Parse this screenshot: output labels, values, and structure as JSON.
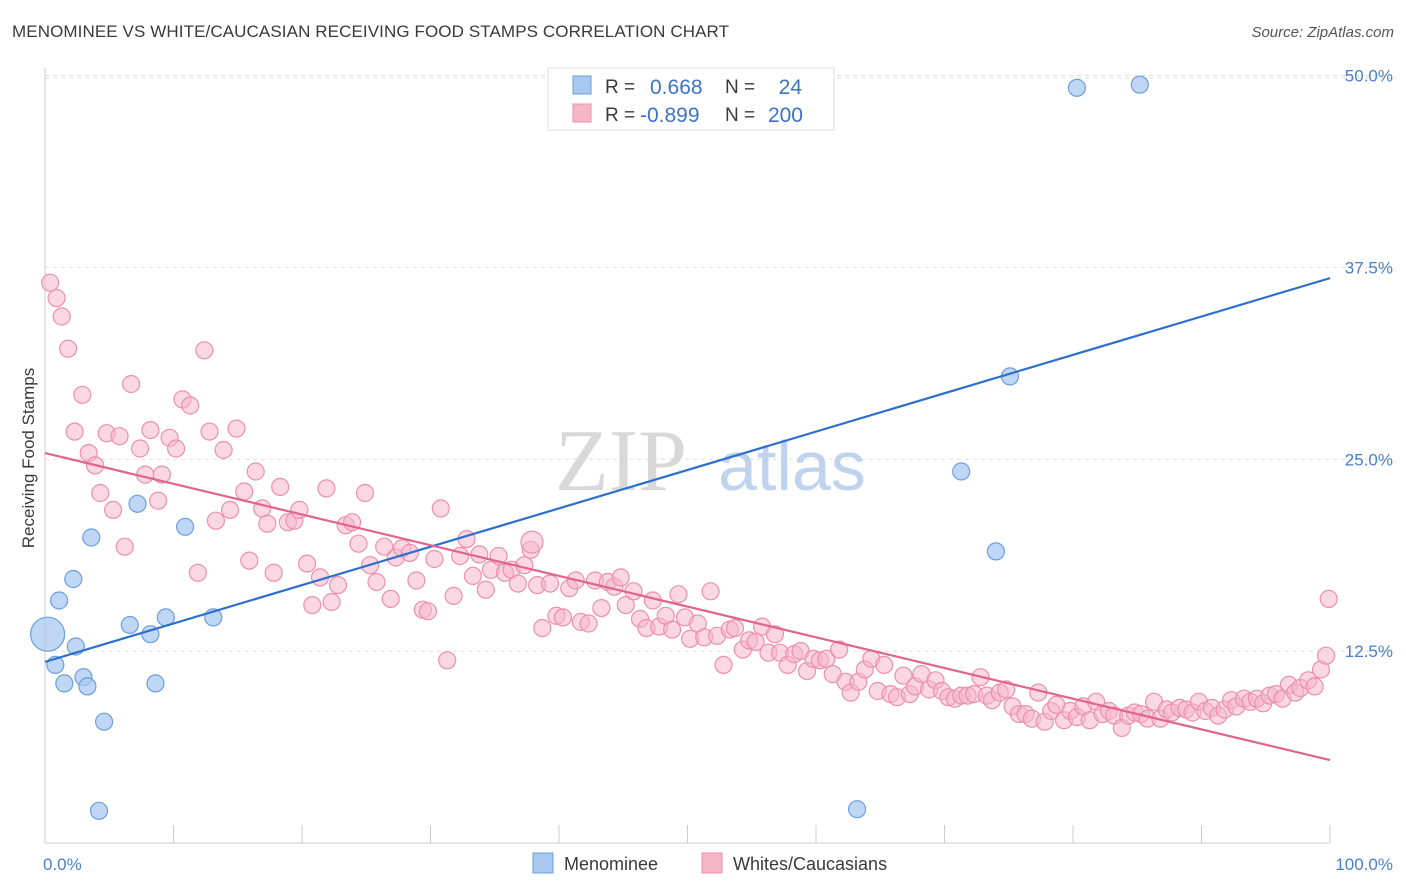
{
  "title": "MENOMINEE VS WHITE/CAUCASIAN RECEIVING FOOD STAMPS CORRELATION CHART",
  "source": "Source: ZipAtlas.com",
  "watermark": {
    "zip": "ZIP",
    "atlas": "atlas"
  },
  "legend": {
    "rows": [
      {
        "r_label": "R =",
        "r_value": "0.668",
        "n_label": "N =",
        "n_value": "24"
      },
      {
        "r_label": "R =",
        "r_value": "-0.899",
        "n_label": "N =",
        "n_value": "200"
      }
    ]
  },
  "bottom_legend": [
    "Menominee",
    "Whites/Caucasians"
  ],
  "colors": {
    "blue_fill": "#a9c8f0",
    "blue_stroke": "#6a9fde",
    "blue_line": "#2d6fce",
    "pink_fill": "#f6b6ca",
    "pink_stroke": "#ec8fb0",
    "pink_line": "#e0648f",
    "tick_text": "#4a7ec9",
    "grid": "#dddddd"
  },
  "chart_data": {
    "type": "scatter",
    "title": "MENOMINEE VS WHITE/CAUCASIAN RECEIVING FOOD STAMPS CORRELATION CHART",
    "xlabel": "",
    "ylabel": "Receiving Food Stamps",
    "xlim": [
      0,
      100
    ],
    "ylim": [
      0,
      52
    ],
    "x_ticks": [
      "0.0%",
      "100.0%"
    ],
    "y_ticks": [
      {
        "value": 12.5,
        "label": "12.5%"
      },
      {
        "value": 25.0,
        "label": "25.0%"
      },
      {
        "value": 37.5,
        "label": "37.5%"
      },
      {
        "value": 50.0,
        "label": "50.0%"
      }
    ],
    "grid": "horizontal dashed",
    "series": [
      {
        "name": "Menominee",
        "r": 0.668,
        "n": 24,
        "trend": {
          "x": [
            0,
            100
          ],
          "y": [
            11.8,
            36.8
          ]
        },
        "points": [
          {
            "x": 0.2,
            "y": 13.6,
            "big": true
          },
          {
            "x": 0.8,
            "y": 11.6
          },
          {
            "x": 1.1,
            "y": 15.8
          },
          {
            "x": 1.5,
            "y": 10.4
          },
          {
            "x": 2.2,
            "y": 17.2
          },
          {
            "x": 2.4,
            "y": 12.8
          },
          {
            "x": 3.0,
            "y": 10.8
          },
          {
            "x": 3.3,
            "y": 10.2
          },
          {
            "x": 3.6,
            "y": 19.9
          },
          {
            "x": 4.2,
            "y": 2.1
          },
          {
            "x": 4.6,
            "y": 7.9
          },
          {
            "x": 6.6,
            "y": 14.2
          },
          {
            "x": 7.2,
            "y": 22.1
          },
          {
            "x": 8.2,
            "y": 13.6
          },
          {
            "x": 8.6,
            "y": 10.4
          },
          {
            "x": 9.4,
            "y": 14.7
          },
          {
            "x": 10.9,
            "y": 20.6
          },
          {
            "x": 13.1,
            "y": 14.7
          },
          {
            "x": 63.2,
            "y": 2.2
          },
          {
            "x": 71.3,
            "y": 24.2
          },
          {
            "x": 74.0,
            "y": 19.0
          },
          {
            "x": 75.1,
            "y": 30.4
          },
          {
            "x": 80.3,
            "y": 49.2
          },
          {
            "x": 85.2,
            "y": 49.4
          }
        ]
      },
      {
        "name": "Whites/Caucasians",
        "r": -0.899,
        "n": 200,
        "trend": {
          "x": [
            0,
            100
          ],
          "y": [
            25.4,
            5.4
          ]
        },
        "points": [
          {
            "x": 0.4,
            "y": 36.5
          },
          {
            "x": 0.9,
            "y": 35.5
          },
          {
            "x": 1.3,
            "y": 34.3
          },
          {
            "x": 1.8,
            "y": 32.2
          },
          {
            "x": 2.3,
            "y": 26.8
          },
          {
            "x": 2.9,
            "y": 29.2
          },
          {
            "x": 3.4,
            "y": 25.4
          },
          {
            "x": 3.9,
            "y": 24.6
          },
          {
            "x": 4.3,
            "y": 22.8
          },
          {
            "x": 4.8,
            "y": 26.7
          },
          {
            "x": 5.3,
            "y": 21.7
          },
          {
            "x": 5.8,
            "y": 26.5
          },
          {
            "x": 6.2,
            "y": 19.3
          },
          {
            "x": 6.7,
            "y": 29.9
          },
          {
            "x": 7.4,
            "y": 25.7
          },
          {
            "x": 7.8,
            "y": 24.0
          },
          {
            "x": 8.2,
            "y": 26.9
          },
          {
            "x": 8.8,
            "y": 22.3
          },
          {
            "x": 9.1,
            "y": 24.0
          },
          {
            "x": 9.7,
            "y": 26.4
          },
          {
            "x": 10.2,
            "y": 25.7
          },
          {
            "x": 10.7,
            "y": 28.9
          },
          {
            "x": 11.3,
            "y": 28.5
          },
          {
            "x": 11.9,
            "y": 17.6
          },
          {
            "x": 12.4,
            "y": 32.1
          },
          {
            "x": 12.8,
            "y": 26.8
          },
          {
            "x": 13.3,
            "y": 21.0
          },
          {
            "x": 13.9,
            "y": 25.6
          },
          {
            "x": 14.4,
            "y": 21.7
          },
          {
            "x": 14.9,
            "y": 27.0
          },
          {
            "x": 15.5,
            "y": 22.9
          },
          {
            "x": 15.9,
            "y": 18.4
          },
          {
            "x": 16.4,
            "y": 24.2
          },
          {
            "x": 16.9,
            "y": 21.8
          },
          {
            "x": 17.3,
            "y": 20.8
          },
          {
            "x": 17.8,
            "y": 17.6
          },
          {
            "x": 18.3,
            "y": 23.2
          },
          {
            "x": 18.9,
            "y": 20.9
          },
          {
            "x": 19.4,
            "y": 21.0
          },
          {
            "x": 19.8,
            "y": 21.7
          },
          {
            "x": 20.4,
            "y": 18.2
          },
          {
            "x": 20.8,
            "y": 15.5
          },
          {
            "x": 21.4,
            "y": 17.3
          },
          {
            "x": 21.9,
            "y": 23.1
          },
          {
            "x": 22.3,
            "y": 15.7
          },
          {
            "x": 22.8,
            "y": 16.8
          },
          {
            "x": 23.4,
            "y": 20.7
          },
          {
            "x": 23.9,
            "y": 20.9
          },
          {
            "x": 24.4,
            "y": 19.5
          },
          {
            "x": 24.9,
            "y": 22.8
          },
          {
            "x": 25.3,
            "y": 18.1
          },
          {
            "x": 25.8,
            "y": 17.0
          },
          {
            "x": 26.4,
            "y": 19.3
          },
          {
            "x": 26.9,
            "y": 15.9
          },
          {
            "x": 27.3,
            "y": 18.6
          },
          {
            "x": 27.8,
            "y": 19.2
          },
          {
            "x": 28.4,
            "y": 18.9
          },
          {
            "x": 28.9,
            "y": 17.1
          },
          {
            "x": 29.4,
            "y": 15.2
          },
          {
            "x": 29.8,
            "y": 15.1
          },
          {
            "x": 30.3,
            "y": 18.5
          },
          {
            "x": 30.8,
            "y": 21.8
          },
          {
            "x": 31.3,
            "y": 11.9
          },
          {
            "x": 31.8,
            "y": 16.1
          },
          {
            "x": 32.3,
            "y": 18.7
          },
          {
            "x": 32.8,
            "y": 19.8
          },
          {
            "x": 33.3,
            "y": 17.4
          },
          {
            "x": 33.8,
            "y": 18.8
          },
          {
            "x": 34.3,
            "y": 16.5
          },
          {
            "x": 34.7,
            "y": 17.8
          },
          {
            "x": 35.3,
            "y": 18.7
          },
          {
            "x": 35.8,
            "y": 17.6
          },
          {
            "x": 36.3,
            "y": 17.8
          },
          {
            "x": 36.8,
            "y": 16.9
          },
          {
            "x": 37.3,
            "y": 18.1
          },
          {
            "x": 37.8,
            "y": 19.1
          },
          {
            "x": 38.3,
            "y": 16.8
          },
          {
            "x": 38.7,
            "y": 14.0
          },
          {
            "x": 39.3,
            "y": 16.9
          },
          {
            "x": 39.8,
            "y": 14.8
          },
          {
            "x": 40.3,
            "y": 14.7
          },
          {
            "x": 40.8,
            "y": 16.6
          },
          {
            "x": 41.3,
            "y": 17.1
          },
          {
            "x": 41.7,
            "y": 14.4
          },
          {
            "x": 42.3,
            "y": 14.3
          },
          {
            "x": 42.8,
            "y": 17.1
          },
          {
            "x": 43.3,
            "y": 15.3
          },
          {
            "x": 43.8,
            "y": 17.0
          },
          {
            "x": 44.3,
            "y": 16.7
          },
          {
            "x": 44.8,
            "y": 17.3
          },
          {
            "x": 45.2,
            "y": 15.5
          },
          {
            "x": 45.8,
            "y": 16.4
          },
          {
            "x": 46.3,
            "y": 14.6
          },
          {
            "x": 46.8,
            "y": 14.0
          },
          {
            "x": 47.3,
            "y": 15.8
          },
          {
            "x": 47.8,
            "y": 14.1
          },
          {
            "x": 48.3,
            "y": 14.8
          },
          {
            "x": 48.8,
            "y": 13.9
          },
          {
            "x": 49.3,
            "y": 16.2
          },
          {
            "x": 49.8,
            "y": 14.7
          },
          {
            "x": 50.2,
            "y": 13.3
          },
          {
            "x": 50.8,
            "y": 14.3
          },
          {
            "x": 51.3,
            "y": 13.4
          },
          {
            "x": 51.8,
            "y": 16.4
          },
          {
            "x": 52.3,
            "y": 13.5
          },
          {
            "x": 52.8,
            "y": 11.6
          },
          {
            "x": 53.3,
            "y": 13.9
          },
          {
            "x": 53.7,
            "y": 14.0
          },
          {
            "x": 54.3,
            "y": 12.6
          },
          {
            "x": 54.8,
            "y": 13.2
          },
          {
            "x": 55.3,
            "y": 13.1
          },
          {
            "x": 55.8,
            "y": 14.1
          },
          {
            "x": 56.3,
            "y": 12.4
          },
          {
            "x": 56.8,
            "y": 13.6
          },
          {
            "x": 57.2,
            "y": 12.4
          },
          {
            "x": 57.8,
            "y": 11.6
          },
          {
            "x": 58.3,
            "y": 12.3
          },
          {
            "x": 58.8,
            "y": 12.5
          },
          {
            "x": 59.3,
            "y": 11.2
          },
          {
            "x": 59.8,
            "y": 12.0
          },
          {
            "x": 60.3,
            "y": 11.9
          },
          {
            "x": 60.8,
            "y": 12.0
          },
          {
            "x": 61.3,
            "y": 11.0
          },
          {
            "x": 61.8,
            "y": 12.6
          },
          {
            "x": 62.3,
            "y": 10.5
          },
          {
            "x": 62.7,
            "y": 9.8
          },
          {
            "x": 63.3,
            "y": 10.5
          },
          {
            "x": 63.8,
            "y": 11.3
          },
          {
            "x": 64.3,
            "y": 12.0
          },
          {
            "x": 64.8,
            "y": 9.9
          },
          {
            "x": 65.3,
            "y": 11.6
          },
          {
            "x": 65.8,
            "y": 9.7
          },
          {
            "x": 66.3,
            "y": 9.5
          },
          {
            "x": 66.8,
            "y": 10.9
          },
          {
            "x": 67.3,
            "y": 9.7
          },
          {
            "x": 67.7,
            "y": 10.2
          },
          {
            "x": 68.2,
            "y": 11.0
          },
          {
            "x": 68.8,
            "y": 10.0
          },
          {
            "x": 69.3,
            "y": 10.6
          },
          {
            "x": 69.8,
            "y": 9.9
          },
          {
            "x": 70.3,
            "y": 9.5
          },
          {
            "x": 70.8,
            "y": 9.4
          },
          {
            "x": 71.3,
            "y": 9.6
          },
          {
            "x": 71.8,
            "y": 9.6
          },
          {
            "x": 72.3,
            "y": 9.7
          },
          {
            "x": 72.8,
            "y": 10.8
          },
          {
            "x": 73.3,
            "y": 9.6
          },
          {
            "x": 73.7,
            "y": 9.3
          },
          {
            "x": 74.3,
            "y": 9.8
          },
          {
            "x": 74.8,
            "y": 10.0
          },
          {
            "x": 75.3,
            "y": 8.9
          },
          {
            "x": 75.8,
            "y": 8.4
          },
          {
            "x": 76.3,
            "y": 8.4
          },
          {
            "x": 76.8,
            "y": 8.1
          },
          {
            "x": 77.3,
            "y": 9.8
          },
          {
            "x": 77.8,
            "y": 7.9
          },
          {
            "x": 78.3,
            "y": 8.6
          },
          {
            "x": 78.7,
            "y": 9.0
          },
          {
            "x": 79.3,
            "y": 8.0
          },
          {
            "x": 79.8,
            "y": 8.6
          },
          {
            "x": 80.3,
            "y": 8.2
          },
          {
            "x": 80.8,
            "y": 8.9
          },
          {
            "x": 81.3,
            "y": 8.0
          },
          {
            "x": 81.8,
            "y": 9.2
          },
          {
            "x": 82.3,
            "y": 8.4
          },
          {
            "x": 82.8,
            "y": 8.6
          },
          {
            "x": 83.2,
            "y": 8.3
          },
          {
            "x": 83.8,
            "y": 7.5
          },
          {
            "x": 84.3,
            "y": 8.3
          },
          {
            "x": 84.8,
            "y": 8.5
          },
          {
            "x": 85.3,
            "y": 8.4
          },
          {
            "x": 85.8,
            "y": 8.1
          },
          {
            "x": 86.3,
            "y": 9.2
          },
          {
            "x": 86.8,
            "y": 8.1
          },
          {
            "x": 87.3,
            "y": 8.7
          },
          {
            "x": 87.7,
            "y": 8.5
          },
          {
            "x": 88.3,
            "y": 8.8
          },
          {
            "x": 88.8,
            "y": 8.7
          },
          {
            "x": 89.3,
            "y": 8.5
          },
          {
            "x": 89.8,
            "y": 9.2
          },
          {
            "x": 90.3,
            "y": 8.6
          },
          {
            "x": 90.8,
            "y": 8.8
          },
          {
            "x": 91.3,
            "y": 8.3
          },
          {
            "x": 91.8,
            "y": 8.7
          },
          {
            "x": 92.3,
            "y": 9.3
          },
          {
            "x": 92.7,
            "y": 8.9
          },
          {
            "x": 93.3,
            "y": 9.4
          },
          {
            "x": 93.8,
            "y": 9.2
          },
          {
            "x": 94.3,
            "y": 9.4
          },
          {
            "x": 94.8,
            "y": 9.1
          },
          {
            "x": 95.3,
            "y": 9.6
          },
          {
            "x": 95.8,
            "y": 9.7
          },
          {
            "x": 96.3,
            "y": 9.4
          },
          {
            "x": 96.8,
            "y": 10.3
          },
          {
            "x": 97.3,
            "y": 9.8
          },
          {
            "x": 97.7,
            "y": 10.1
          },
          {
            "x": 98.3,
            "y": 10.6
          },
          {
            "x": 98.8,
            "y": 10.2
          },
          {
            "x": 99.3,
            "y": 11.3
          },
          {
            "x": 99.7,
            "y": 12.2
          },
          {
            "x": 99.9,
            "y": 15.9
          },
          {
            "x": 37.9,
            "y": 19.6,
            "big": true
          }
        ]
      }
    ]
  }
}
